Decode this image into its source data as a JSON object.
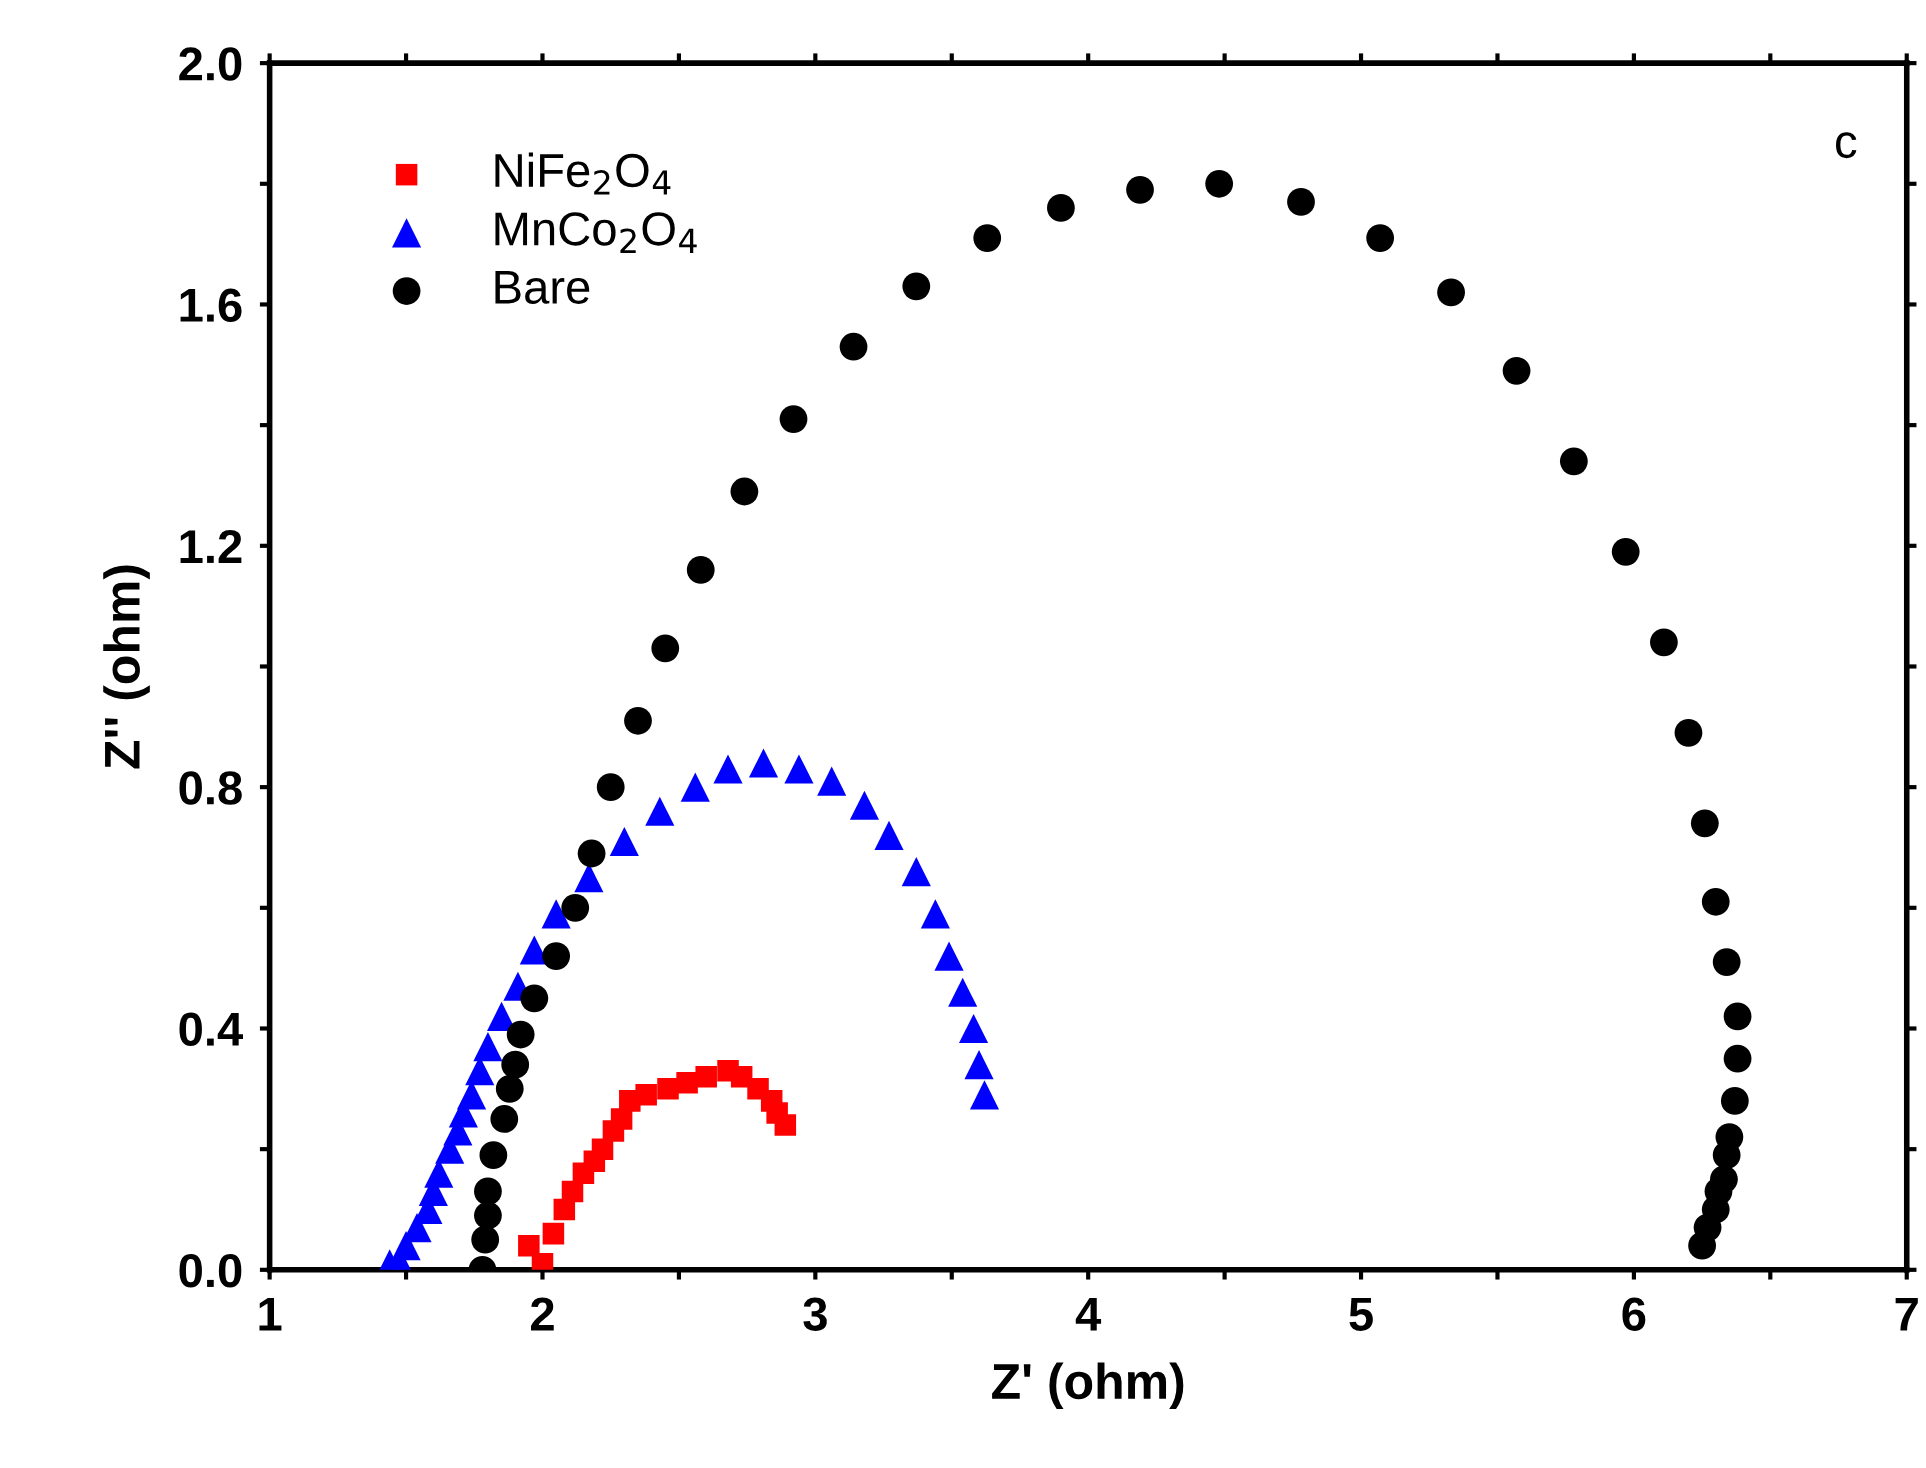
{
  "chart_data": {
    "type": "scatter",
    "xlabel": "Z' (ohm)",
    "ylabel": "Z'' (ohm)",
    "annotations": [
      "c"
    ],
    "xlim": [
      1,
      7
    ],
    "ylim": [
      0,
      2.0
    ],
    "xticks": [
      1,
      {
        "value": 1.5,
        "label": null
      },
      2,
      {
        "value": 2.5,
        "label": null
      },
      3,
      {
        "value": 3.5,
        "label": null
      },
      4,
      {
        "value": 4.5,
        "label": null
      },
      5,
      {
        "value": 5.5,
        "label": null
      },
      6,
      {
        "value": 6.5,
        "label": null
      },
      7
    ],
    "yticks": [
      {
        "value": 0,
        "label": "0.0"
      },
      {
        "value": 0.2,
        "label": null
      },
      0.4,
      {
        "value": 0.6,
        "label": null
      },
      0.8,
      {
        "value": 1.0,
        "label": null
      },
      1.2,
      {
        "value": 1.4,
        "label": null
      },
      1.6,
      {
        "value": 1.8,
        "label": null
      },
      {
        "value": 2.0,
        "label": "2.0"
      }
    ],
    "legend": "top left",
    "grid": false,
    "series": [
      {
        "name": "NiFe$_{2}$O$_{4}$",
        "color": "#ff0000",
        "marker": "square",
        "x": [
          1.95,
          2.0,
          2.04,
          2.08,
          2.11,
          2.15,
          2.19,
          2.22,
          2.26,
          2.29,
          2.32,
          2.38,
          2.46,
          2.53,
          2.6,
          2.68,
          2.73,
          2.79,
          2.84,
          2.86,
          2.89
        ],
        "values": [
          0.04,
          0.01,
          0.06,
          0.1,
          0.13,
          0.16,
          0.18,
          0.2,
          0.23,
          0.25,
          0.28,
          0.29,
          0.3,
          0.31,
          0.32,
          0.33,
          0.32,
          0.3,
          0.28,
          0.26,
          0.24
        ]
      },
      {
        "name": "MnCo$_{2}$O$_{4}$",
        "color": "#0000ff",
        "marker": "triangle",
        "x": [
          1.44,
          1.48,
          1.5,
          1.54,
          1.58,
          1.6,
          1.62,
          1.66,
          1.69,
          1.71,
          1.74,
          1.77,
          1.8,
          1.85,
          1.91,
          1.97,
          2.05,
          2.17,
          2.3,
          2.43,
          2.56,
          2.68,
          2.81,
          2.94,
          3.06,
          3.18,
          3.27,
          3.37,
          3.44,
          3.49,
          3.54,
          3.58,
          3.6,
          3.62
        ],
        "values": [
          0.01,
          0.01,
          0.04,
          0.07,
          0.1,
          0.13,
          0.16,
          0.2,
          0.23,
          0.26,
          0.29,
          0.33,
          0.37,
          0.42,
          0.47,
          0.53,
          0.59,
          0.65,
          0.71,
          0.76,
          0.8,
          0.83,
          0.84,
          0.83,
          0.81,
          0.77,
          0.72,
          0.66,
          0.59,
          0.52,
          0.46,
          0.4,
          0.34,
          0.29
        ]
      },
      {
        "name": "Bare",
        "color": "#000000",
        "marker": "circle",
        "x": [
          1.78,
          1.79,
          1.8,
          1.8,
          1.82,
          1.86,
          1.88,
          1.9,
          1.92,
          1.97,
          2.05,
          2.12,
          2.18,
          2.25,
          2.35,
          2.45,
          2.58,
          2.74,
          2.92,
          3.14,
          3.37,
          3.63,
          3.9,
          4.19,
          4.48,
          4.78,
          5.07,
          5.33,
          5.57,
          5.78,
          5.97,
          6.11,
          6.2,
          6.26,
          6.3,
          6.34,
          6.38,
          6.38,
          6.37,
          6.35,
          6.34,
          6.33,
          6.31,
          6.3,
          6.27,
          6.25
        ],
        "values": [
          0.0,
          0.05,
          0.09,
          0.13,
          0.19,
          0.25,
          0.3,
          0.34,
          0.39,
          0.45,
          0.52,
          0.6,
          0.69,
          0.8,
          0.91,
          1.03,
          1.16,
          1.29,
          1.41,
          1.53,
          1.63,
          1.71,
          1.76,
          1.79,
          1.8,
          1.77,
          1.71,
          1.62,
          1.49,
          1.34,
          1.19,
          1.04,
          0.89,
          0.74,
          0.61,
          0.51,
          0.42,
          0.35,
          0.28,
          0.22,
          0.19,
          0.15,
          0.13,
          0.1,
          0.07,
          0.04
        ]
      }
    ]
  }
}
